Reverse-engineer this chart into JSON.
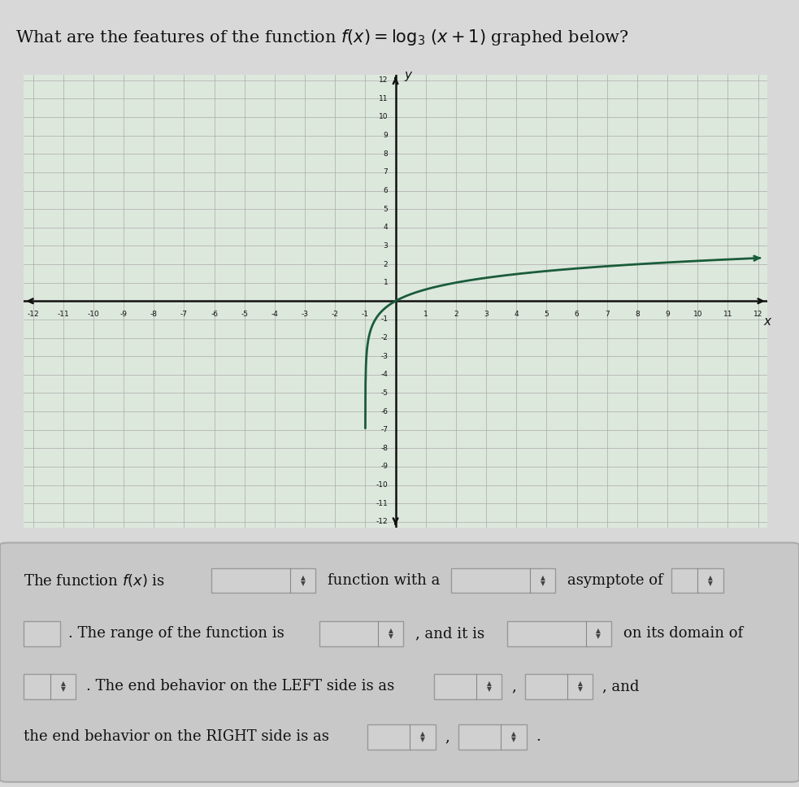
{
  "title": "What are the features of the function $f(x) = \\log_3\\,(x+1)$ graphed below?",
  "title_fontsize": 15,
  "graph_bg_color": "#dde8dd",
  "page_bg_color": "#d8d8d8",
  "white_bg": "#ffffff",
  "curve_color": "#1a5c3a",
  "curve_linewidth": 2.0,
  "axis_color": "#111111",
  "grid_color": "#aaaaaa",
  "grid_linewidth": 0.5,
  "xmin": -12,
  "xmax": 12,
  "ymin": -12,
  "ymax": 12,
  "xlabel": "x",
  "ylabel": "y",
  "bottom_panel_color": "#cccccc",
  "bottom_panel_inner": "#c8c8c8",
  "dropdown_color": "#b8b8b8",
  "input_box_color": "#d0d0d0",
  "log_base": 3,
  "asymptote_x": -1,
  "tick_fontsize": 6.5,
  "axis_label_fontsize": 11,
  "text_fontsize": 13
}
